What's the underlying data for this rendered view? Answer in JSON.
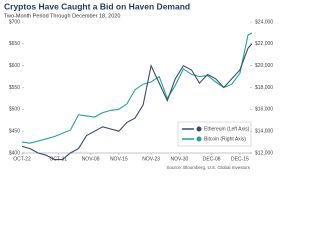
{
  "chart_data": {
    "type": "line",
    "title": "Cryptos Have Caught a Bid on Haven Demand",
    "subtitle": "Two-Month Period Through December 18, 2020",
    "source": "Source: Bloomberg, U.S. Global Investors",
    "x": [
      0,
      2,
      4,
      6,
      8,
      10,
      12,
      14,
      16,
      18,
      20,
      22,
      24,
      26,
      28,
      30,
      32,
      34,
      36,
      38,
      40,
      42,
      44,
      46,
      48,
      50,
      52,
      54,
      56,
      57
    ],
    "xlim": [
      0,
      57
    ],
    "xticks": [
      {
        "value": 0,
        "label": "OCT-22"
      },
      {
        "value": 9,
        "label": "OCT-31"
      },
      {
        "value": 17,
        "label": "NOV-08"
      },
      {
        "value": 24,
        "label": "NOV-15"
      },
      {
        "value": 32,
        "label": "NOV-23"
      },
      {
        "value": 39,
        "label": "NOV-30"
      },
      {
        "value": 47,
        "label": "DEC-08"
      },
      {
        "value": 54,
        "label": "DEC-15"
      }
    ],
    "ylim": [
      400,
      700
    ],
    "yticks": [
      {
        "value": 400,
        "label": "$400"
      },
      {
        "value": 450,
        "label": "$450"
      },
      {
        "value": 500,
        "label": "$500"
      },
      {
        "value": 550,
        "label": "$550"
      },
      {
        "value": 600,
        "label": "$600"
      },
      {
        "value": 650,
        "label": "$650"
      },
      {
        "value": 700,
        "label": "$700"
      }
    ],
    "y2lim": [
      12000,
      24000
    ],
    "y2ticks": [
      {
        "value": 12000,
        "label": "$12,000"
      },
      {
        "value": 14000,
        "label": "$14,000"
      },
      {
        "value": 16000,
        "label": "$16,000"
      },
      {
        "value": 18000,
        "label": "$18,000"
      },
      {
        "value": 20000,
        "label": "$20,000"
      },
      {
        "value": 22000,
        "label": "$22,000"
      },
      {
        "value": 24000,
        "label": "$24,000"
      }
    ],
    "series": [
      {
        "name": "Ethereum (Left Axis)",
        "color": "#3b4a6b",
        "values": [
          415,
          410,
          400,
          395,
          385,
          385,
          400,
          410,
          440,
          450,
          460,
          455,
          450,
          470,
          480,
          510,
          600,
          560,
          520,
          570,
          600,
          590,
          560,
          580,
          570,
          550,
          570,
          590,
          640,
          650
        ]
      },
      {
        "name": "Bitcoin (Right Axis)",
        "color": "#1fa39a",
        "axis": "y2",
        "values": [
          13000,
          12900,
          13100,
          13300,
          13500,
          13800,
          14100,
          15500,
          15400,
          15300,
          15700,
          15900,
          16000,
          16500,
          17800,
          18300,
          18500,
          19000,
          17000,
          18200,
          19700,
          19200,
          19000,
          19100,
          18500,
          18000,
          18300,
          19300,
          22800,
          23000
        ]
      }
    ]
  }
}
